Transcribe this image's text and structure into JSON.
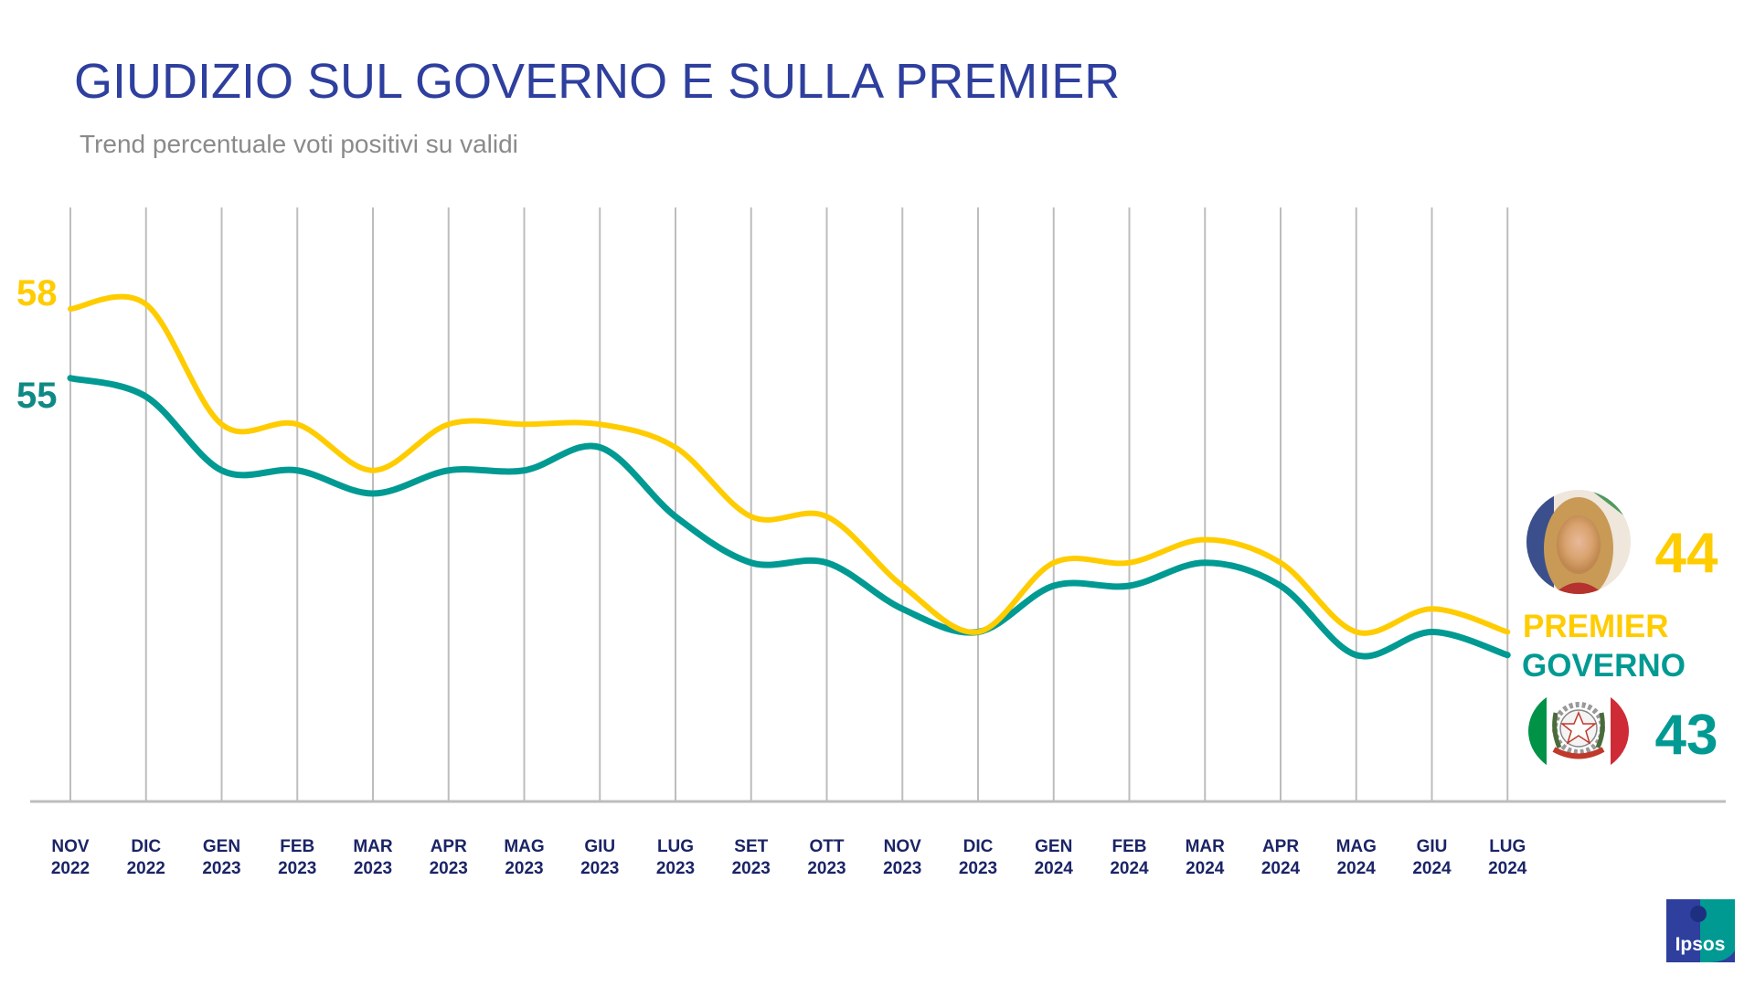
{
  "chart_data": {
    "type": "line",
    "title": "GIUDIZIO SUL GOVERNO E SULLA PREMIER",
    "subtitle": "Trend percentuale voti positivi su validi",
    "categories": [
      [
        "NOV",
        "2022"
      ],
      [
        "DIC",
        "2022"
      ],
      [
        "GEN",
        "2023"
      ],
      [
        "FEB",
        "2023"
      ],
      [
        "MAR",
        "2023"
      ],
      [
        "APR",
        "2023"
      ],
      [
        "MAG",
        "2023"
      ],
      [
        "GIU",
        "2023"
      ],
      [
        "LUG",
        "2023"
      ],
      [
        "SET",
        "2023"
      ],
      [
        "OTT",
        "2023"
      ],
      [
        "NOV",
        "2023"
      ],
      [
        "DIC",
        "2023"
      ],
      [
        "GEN",
        "2024"
      ],
      [
        "FEB",
        "2024"
      ],
      [
        "MAR",
        "2024"
      ],
      [
        "APR",
        "2024"
      ],
      [
        "MAG",
        "2024"
      ],
      [
        "GIU",
        "2024"
      ],
      [
        "LUG",
        "2024"
      ]
    ],
    "series": [
      {
        "name": "PREMIER",
        "color": "#FFCC00",
        "values": [
          58,
          58.2,
          53,
          53,
          51,
          53,
          53,
          53,
          52,
          49,
          49,
          46,
          44,
          47,
          47,
          48,
          47,
          44,
          45,
          44
        ],
        "start_label": "58",
        "end_label": "44"
      },
      {
        "name": "GOVERNO",
        "color": "#009A93",
        "values": [
          55,
          54.2,
          51,
          51,
          50,
          51,
          51,
          52,
          49,
          47,
          47,
          45,
          44,
          46,
          46,
          47,
          46,
          43,
          44,
          43
        ],
        "start_label": "55",
        "end_label": "43"
      }
    ],
    "grid": "vertical",
    "ylim": [
      40,
      62
    ],
    "legend": "right"
  },
  "colors": {
    "title": "#2E3F9E",
    "axis_text": "#1B2466",
    "premier": "#FFCC00",
    "governo": "#009A93",
    "grid": "#bdbdbd"
  },
  "icons": {
    "premier": "premier-photo-icon",
    "governo": "italian-emblem-icon",
    "brand": "ipsos-logo"
  },
  "brand": {
    "logo_text": "Ipsos"
  }
}
